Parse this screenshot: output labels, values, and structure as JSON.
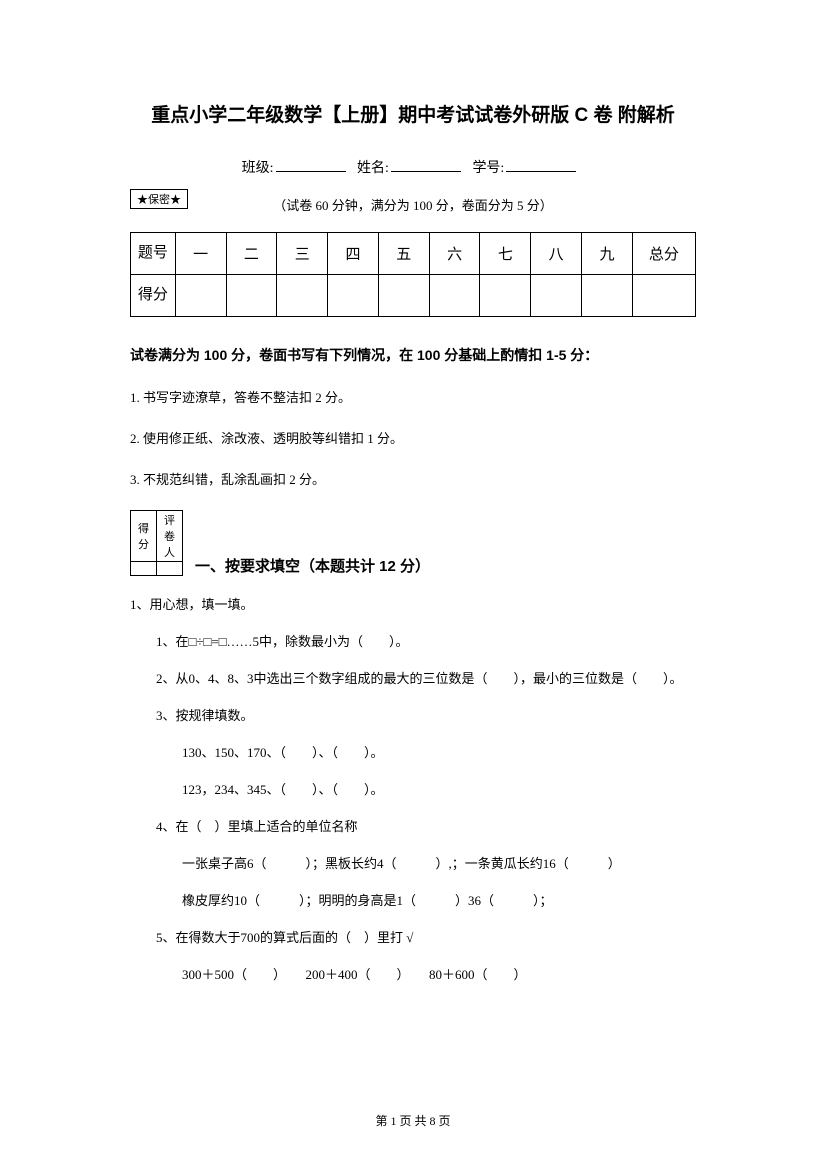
{
  "title": "重点小学二年级数学【上册】期中考试试卷外研版 C 卷  附解析",
  "info": {
    "class_label": "班级:",
    "name_label": "姓名:",
    "id_label": "学号:"
  },
  "secret_badge": "★保密★",
  "exam_info": "（试卷 60 分钟，满分为 100 分，卷面分为 5 分）",
  "score_table": {
    "row_label_1": "题号",
    "row_label_2": "得分",
    "cols": [
      "一",
      "二",
      "三",
      "四",
      "五",
      "六",
      "七",
      "八",
      "九"
    ],
    "total": "总分"
  },
  "bold_instruction": "试卷满分为 100 分，卷面书写有下列情况，在 100 分基础上酌情扣 1-5 分：",
  "rules": [
    "1. 书写字迹潦草，答卷不整洁扣 2 分。",
    "2. 使用修正纸、涂改液、透明胶等纠错扣 1 分。",
    "3. 不规范纠错，乱涂乱画扣 2 分。"
  ],
  "marker": {
    "score": "得分",
    "reviewer": "评卷人"
  },
  "section1_heading": "一、按要求填空（本题共计 12 分）",
  "q1": "1、用心想，填一填。",
  "q1_1": "1、在□÷□=□……5中，除数最小为（　　）。",
  "q1_2": "2、从0、4、8、3中选出三个数字组成的最大的三位数是（　　），最小的三位数是（　　）。",
  "q1_3": "3、按规律填数。",
  "q1_3a": "130、150、170、（　　）、（　　）。",
  "q1_3b": "123，234、345、（　　）、（　　）。",
  "q1_4": "4、在（　）里填上适合的单位名称",
  "q1_4a": "一张桌子高6（　　　）；黑板长约4（　　　）,；一条黄瓜长约16（　　　）",
  "q1_4b": "橡皮厚约10（　　　）；明明的身高是1（　　　）36（　　　）；",
  "q1_5": "5、在得数大于700的算式后面的（　）里打 √",
  "q1_5a": "300＋500（　　）　　200＋400（　　）　　80＋600（　　）",
  "footer": "第 1 页 共 8 页"
}
